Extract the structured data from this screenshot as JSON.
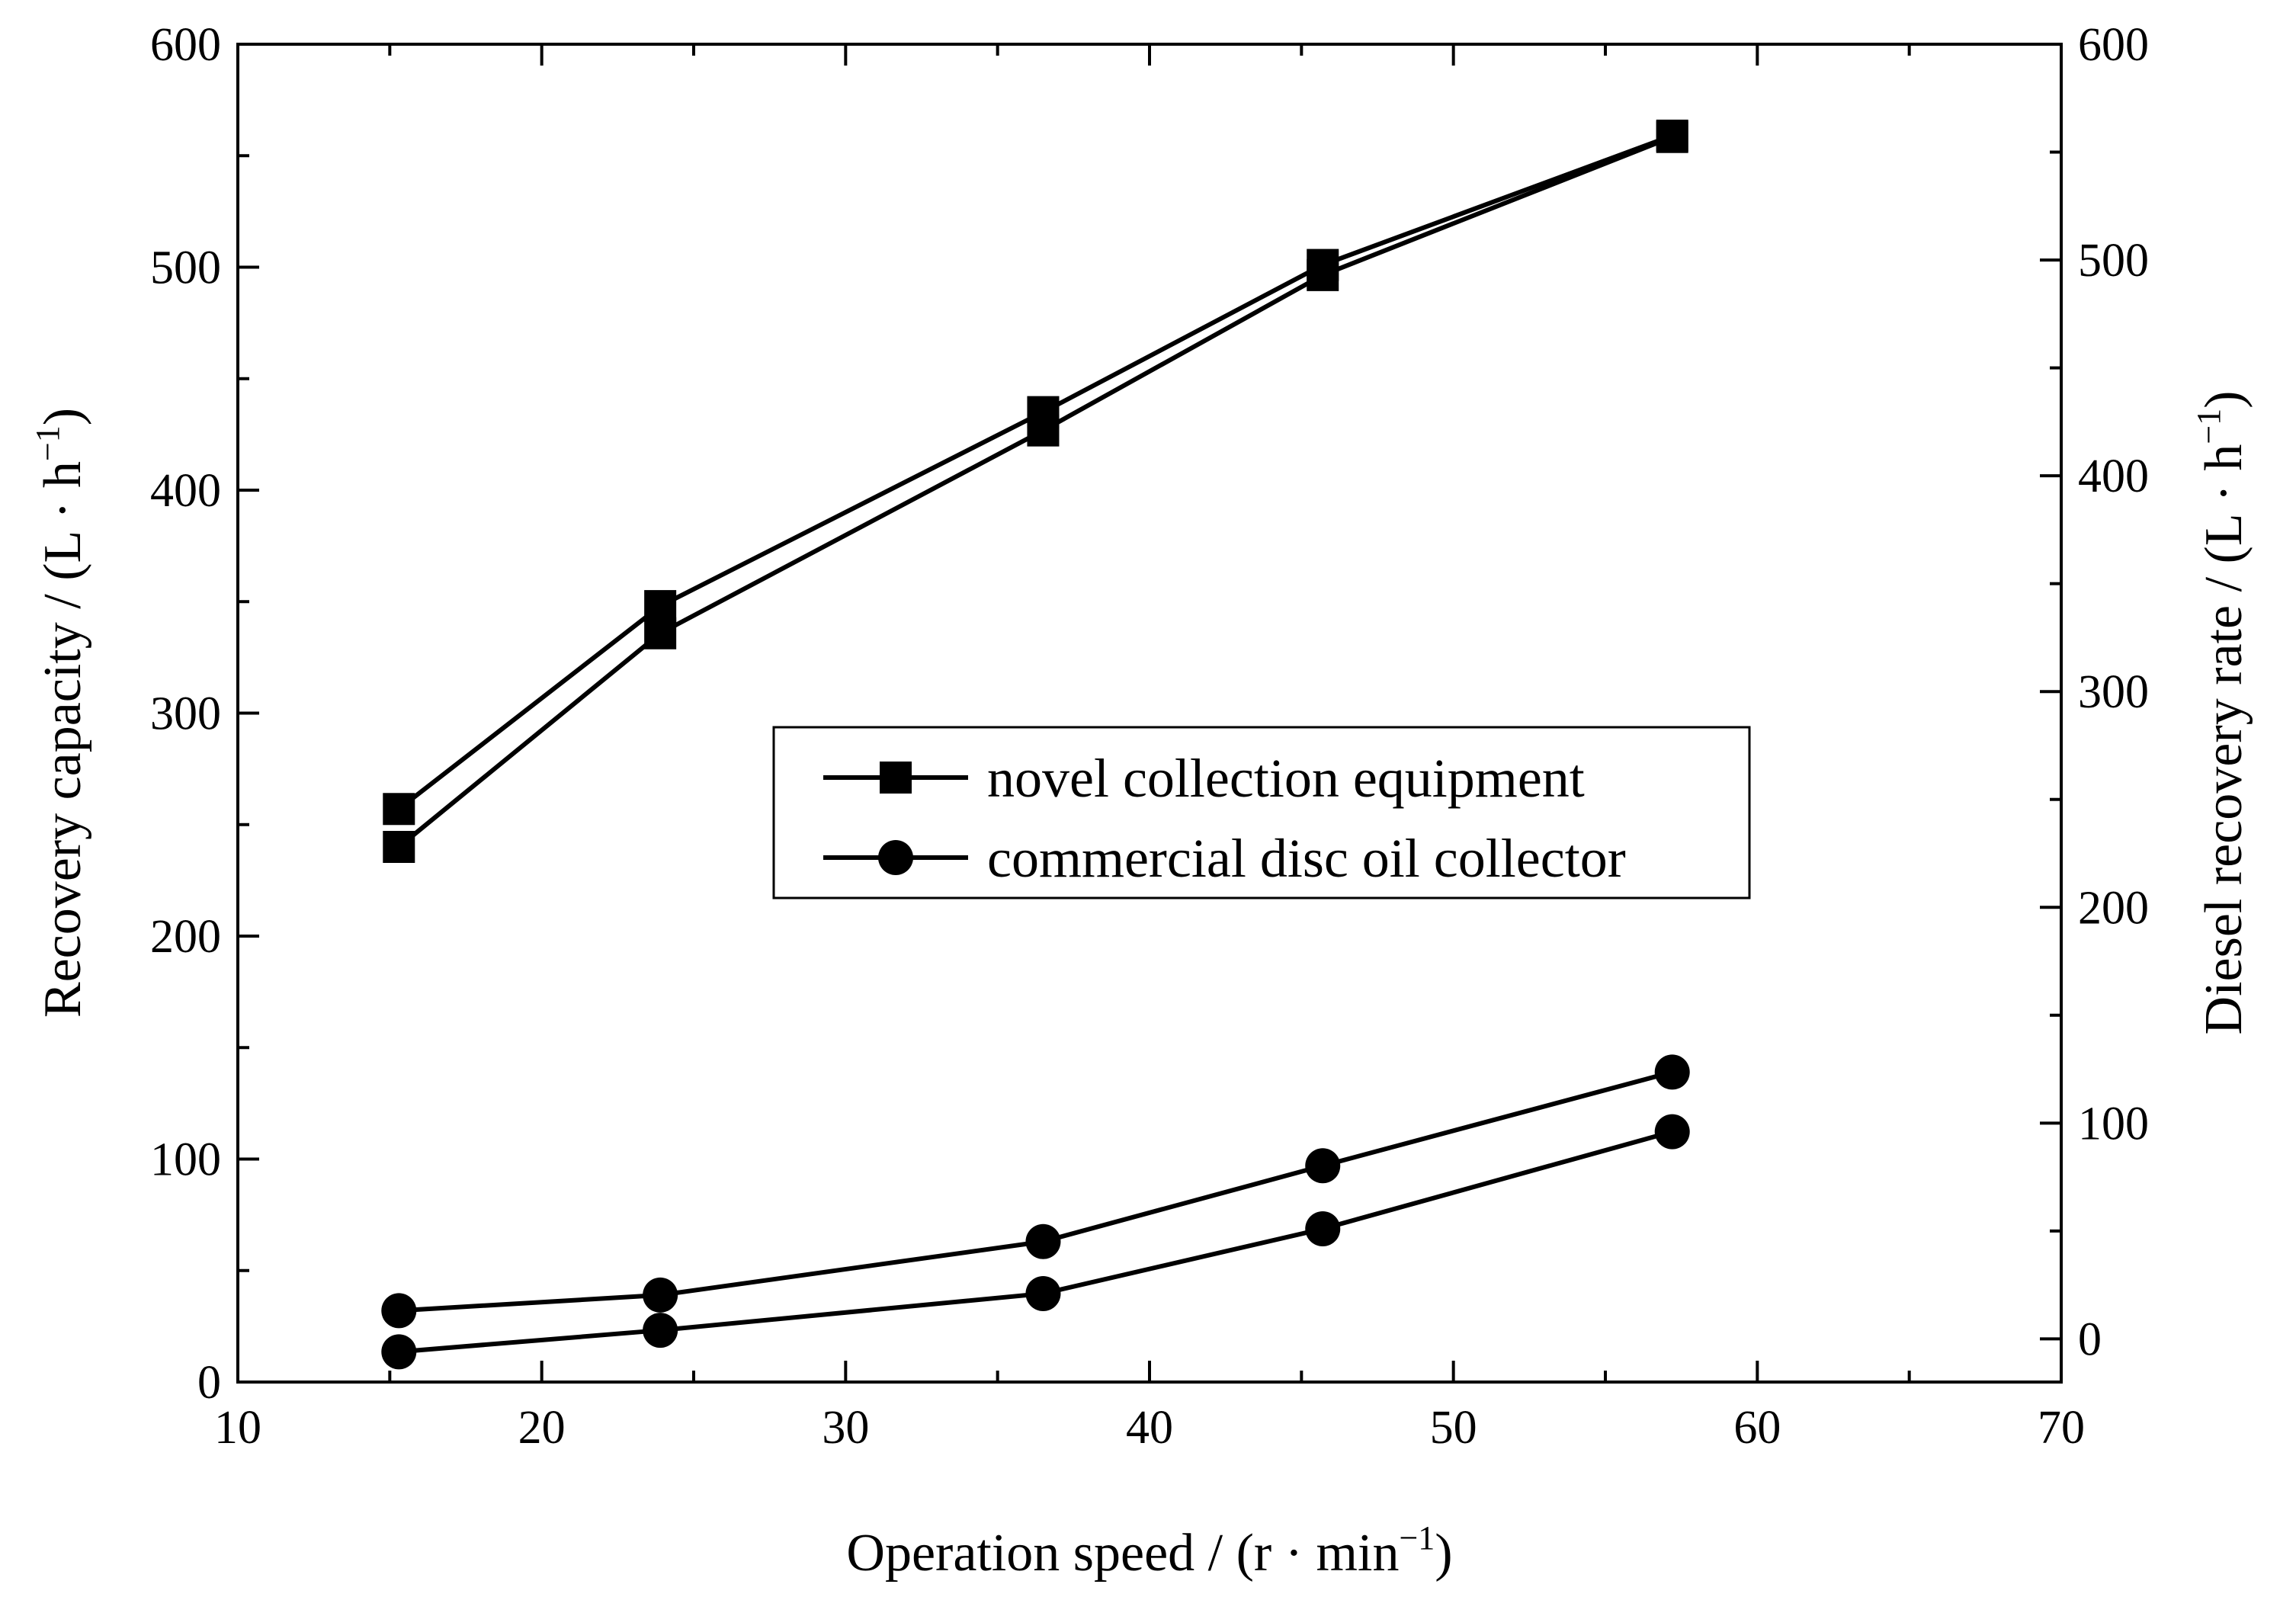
{
  "chart_data": {
    "type": "line",
    "x_axis": {
      "label": "Operation speed / (r · min",
      "label_sup": "−1",
      "label_end": ")",
      "range": [
        10,
        70
      ],
      "ticks": [
        10,
        20,
        30,
        40,
        50,
        60,
        70
      ]
    },
    "y_axis_left": {
      "label": "Recovery capacity / (L · h",
      "label_sup": "−1",
      "label_end": ")",
      "range": [
        0,
        600
      ],
      "ticks": [
        0,
        100,
        200,
        300,
        400,
        500,
        600
      ]
    },
    "y_axis_right": {
      "label": "Diesel recovery rate / (L · h",
      "label_sup": "−1",
      "label_end": ")",
      "range": [
        -20,
        600
      ],
      "ticks": [
        0,
        100,
        200,
        300,
        400,
        500,
        600
      ]
    },
    "legend": {
      "position": "center",
      "entries": [
        {
          "name": "novel collection equipment",
          "marker": "square"
        },
        {
          "name": "commercial disc oil collector",
          "marker": "circle"
        }
      ]
    },
    "series": [
      {
        "name": "novel collection equipment",
        "axis": "left",
        "marker": "square",
        "x": [
          15.3,
          23.9,
          36.5,
          45.7,
          57.2
        ],
        "y": [
          257,
          348,
          435,
          501,
          559
        ]
      },
      {
        "name": "novel collection equipment",
        "axis": "right",
        "marker": "square",
        "x": [
          15.3,
          23.9,
          36.5,
          45.7,
          57.2
        ],
        "y": [
          228,
          327,
          421,
          493,
          557
        ]
      },
      {
        "name": "commercial disc oil collector",
        "axis": "left",
        "marker": "circle",
        "x": [
          15.3,
          23.9,
          36.5,
          45.7,
          57.2
        ],
        "y": [
          32,
          39,
          63,
          97,
          139
        ]
      },
      {
        "name": "commercial disc oil collector",
        "axis": "right",
        "marker": "circle",
        "x": [
          15.3,
          23.9,
          36.5,
          45.7,
          57.2
        ],
        "y": [
          -6,
          4,
          21,
          51,
          96
        ]
      }
    ]
  }
}
